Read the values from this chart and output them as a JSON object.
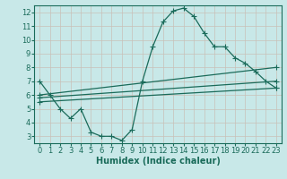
{
  "xlabel": "Humidex (Indice chaleur)",
  "ylabel": "",
  "background_color": "#c8e8e8",
  "grid_color": "#c8c0b8",
  "line_color": "#1a6b5a",
  "xlim": [
    -0.5,
    23.5
  ],
  "ylim": [
    2.5,
    12.5
  ],
  "xticks": [
    0,
    1,
    2,
    3,
    4,
    5,
    6,
    7,
    8,
    9,
    10,
    11,
    12,
    13,
    14,
    15,
    16,
    17,
    18,
    19,
    20,
    21,
    22,
    23
  ],
  "yticks": [
    3,
    4,
    5,
    6,
    7,
    8,
    9,
    10,
    11,
    12
  ],
  "line1_x": [
    0,
    1,
    2,
    3,
    4,
    5,
    6,
    7,
    8,
    9,
    10,
    11,
    12,
    13,
    14,
    15,
    16,
    17,
    18,
    19,
    20,
    21,
    22,
    23
  ],
  "line1_y": [
    7.0,
    6.0,
    5.0,
    4.3,
    5.0,
    3.3,
    3.0,
    3.0,
    2.7,
    3.5,
    7.0,
    9.5,
    11.3,
    12.1,
    12.3,
    11.7,
    10.5,
    9.5,
    9.5,
    8.7,
    8.3,
    7.7,
    7.0,
    6.5
  ],
  "line2_x": [
    0,
    23
  ],
  "line2_y": [
    6.0,
    8.0
  ],
  "line3_x": [
    0,
    23
  ],
  "line3_y": [
    5.8,
    7.0
  ],
  "line4_x": [
    0,
    23
  ],
  "line4_y": [
    5.5,
    6.5
  ],
  "marker_size": 2.5,
  "line_width": 0.9,
  "font_size_ticks": 6,
  "font_size_xlabel": 7
}
